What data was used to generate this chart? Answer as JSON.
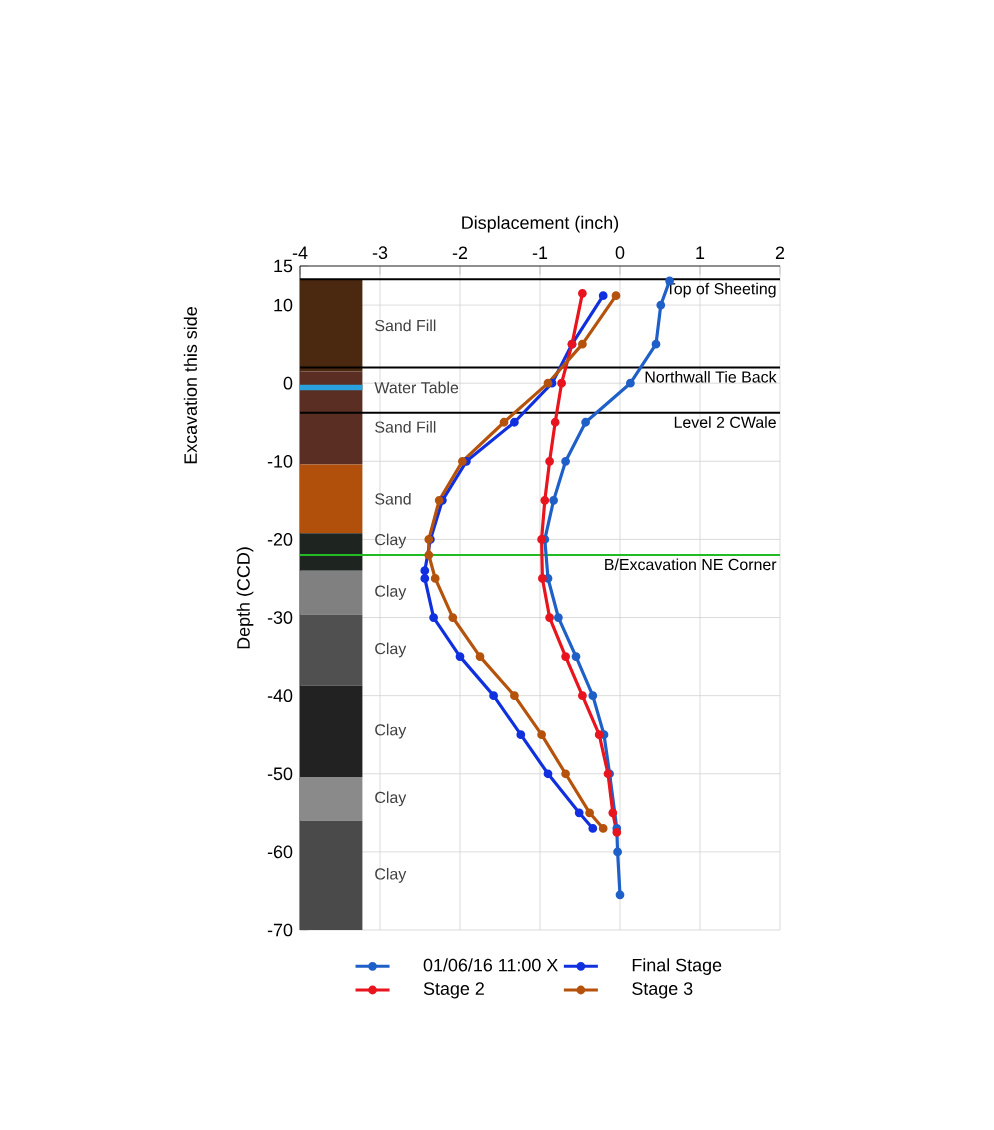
{
  "chart_data": {
    "type": "line",
    "xlabel": "Displacement (inch)",
    "ylabel": "Depth (CCD)",
    "annotations": [
      "Excavation this side"
    ],
    "xlim": [
      -4,
      2
    ],
    "ylim": [
      -70,
      15
    ],
    "xticks": [
      -4,
      -3,
      -2,
      -1,
      0,
      1,
      2
    ],
    "yticks": [
      -70,
      -60,
      -50,
      -40,
      -30,
      -20,
      -10,
      0,
      10,
      15
    ],
    "grid": true,
    "legend": "bottom",
    "marker": "circle",
    "series": [
      {
        "name": "01/06/16 11:00 X",
        "color": "#1f5fc8",
        "x": [
          0.62,
          0.51,
          0.45,
          0.13,
          -0.43,
          -0.68,
          -0.83,
          -0.94,
          -0.9,
          -0.77,
          -0.55,
          -0.34,
          -0.2,
          -0.13,
          -0.04,
          -0.03,
          0.0
        ],
        "values": [
          13.1,
          10,
          5,
          0,
          -5,
          -10,
          -15,
          -20,
          -25,
          -30,
          -35,
          -40,
          -45,
          -50,
          -57,
          -60,
          -65.5
        ]
      },
      {
        "name": "Final Stage",
        "color": "#1030e0",
        "x": [
          -0.21,
          -0.6,
          -0.85,
          -1.32,
          -1.92,
          -2.22,
          -2.37,
          -2.44,
          -2.44,
          -2.33,
          -2.0,
          -1.58,
          -1.24,
          -0.9,
          -0.51,
          -0.34
        ],
        "values": [
          11.2,
          5,
          0,
          -5,
          -10,
          -15,
          -20,
          -24,
          -25,
          -30,
          -35,
          -40,
          -45,
          -50,
          -55,
          -57
        ]
      },
      {
        "name": "Stage 2",
        "color": "#e8141e",
        "x": [
          -0.47,
          -0.6,
          -0.73,
          -0.81,
          -0.88,
          -0.94,
          -0.98,
          -0.97,
          -0.88,
          -0.68,
          -0.47,
          -0.26,
          -0.15,
          -0.09,
          -0.04
        ],
        "values": [
          11.5,
          5,
          0,
          -5,
          -10,
          -15,
          -20,
          -25,
          -30,
          -35,
          -40,
          -45,
          -50,
          -55,
          -57.5
        ]
      },
      {
        "name": "Stage 3",
        "color": "#b5520c",
        "x": [
          -0.05,
          -0.47,
          -0.9,
          -1.45,
          -1.97,
          -2.26,
          -2.39,
          -2.39,
          -2.31,
          -2.09,
          -1.75,
          -1.32,
          -0.98,
          -0.68,
          -0.38,
          -0.21
        ],
        "values": [
          11.2,
          5,
          0,
          -5,
          -10,
          -15,
          -20,
          -22,
          -25,
          -30,
          -35,
          -40,
          -45,
          -50,
          -55,
          -57
        ]
      }
    ],
    "ref_lines": [
      {
        "axis": "y",
        "value": 13.3,
        "label": "Top of Sheeting",
        "color": "#000000"
      },
      {
        "axis": "y",
        "value": 2,
        "label": "Northwall Tie Back",
        "color": "#000000"
      },
      {
        "axis": "y",
        "value": -3.8,
        "label": "Level 2 CWale",
        "color": "#000000"
      },
      {
        "axis": "y",
        "value": -22,
        "label": "B/Excavation NE Corner",
        "color": "#22bb22"
      }
    ],
    "bands": [
      {
        "axis": "y",
        "from": 1.5,
        "to": 13.3,
        "label": "Sand Fill",
        "color": "#4b2810"
      },
      {
        "axis": "y",
        "from": -10.4,
        "to": 1.5,
        "label": "Sand Fill",
        "color": "#5a2e22"
      },
      {
        "axis": "y",
        "from": -0.9,
        "to": -0.2,
        "label": "Water Table",
        "color": "#2aa0dc"
      },
      {
        "axis": "y",
        "from": -19.2,
        "to": -10.4,
        "label": "Sand",
        "color": "#b0500a"
      },
      {
        "axis": "y",
        "from": -24,
        "to": -19.2,
        "label": "Clay",
        "color": "#1e2420"
      },
      {
        "axis": "y",
        "from": -29.6,
        "to": -24,
        "label": "Clay",
        "color": "#808080"
      },
      {
        "axis": "y",
        "from": -38.7,
        "to": -29.6,
        "label": "Clay",
        "color": "#505050"
      },
      {
        "axis": "y",
        "from": -50.4,
        "to": -38.7,
        "label": "Clay",
        "color": "#222222"
      },
      {
        "axis": "y",
        "from": -56,
        "to": -50.4,
        "label": "Clay",
        "color": "#8a8a8a"
      },
      {
        "axis": "y",
        "from": -70,
        "to": -56,
        "label": "Clay",
        "color": "#4a4a4a"
      }
    ]
  }
}
